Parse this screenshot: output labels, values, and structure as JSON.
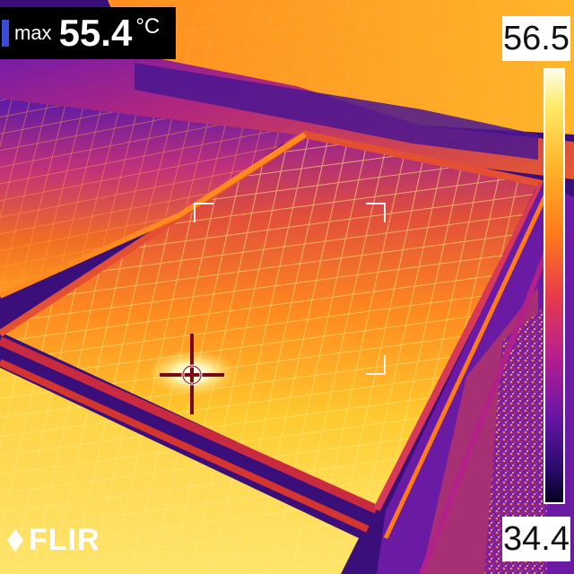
{
  "readout": {
    "label": "max",
    "value": "55.4",
    "unit": "°C"
  },
  "scale": {
    "max": "56.5",
    "min": "34.4"
  },
  "brand": "FLIR"
}
